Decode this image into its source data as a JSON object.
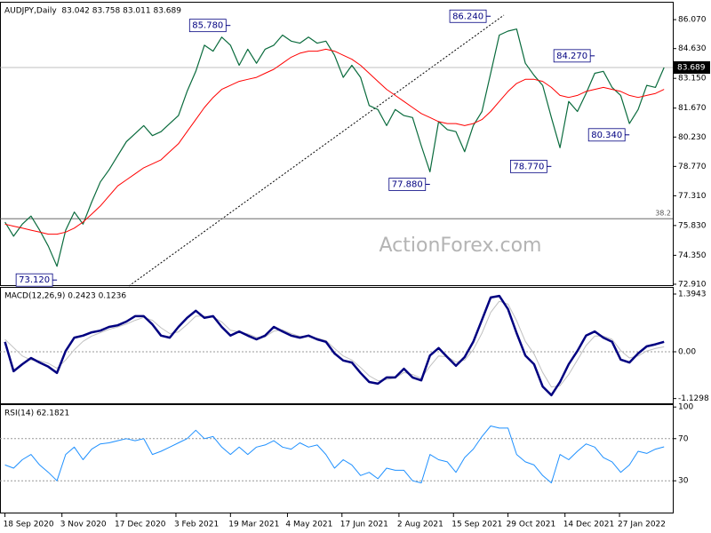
{
  "chart_data": {
    "type": "line",
    "x": [
      "2020-09-18",
      "2020-09-25",
      "2020-10-02",
      "2020-10-09",
      "2020-10-16",
      "2020-10-23",
      "2020-10-30",
      "2020-11-06",
      "2020-11-13",
      "2020-11-20",
      "2020-11-27",
      "2020-12-04",
      "2020-12-11",
      "2020-12-18",
      "2020-12-25",
      "2021-01-01",
      "2021-01-08",
      "2021-01-15",
      "2021-01-22",
      "2021-01-29",
      "2021-02-05",
      "2021-02-12",
      "2021-02-19",
      "2021-02-26",
      "2021-03-05",
      "2021-03-12",
      "2021-03-19",
      "2021-03-26",
      "2021-04-02",
      "2021-04-09",
      "2021-04-16",
      "2021-04-23",
      "2021-04-30",
      "2021-05-07",
      "2021-05-14",
      "2021-05-21",
      "2021-05-28",
      "2021-06-04",
      "2021-06-11",
      "2021-06-18",
      "2021-06-25",
      "2021-07-02",
      "2021-07-09",
      "2021-07-16",
      "2021-07-23",
      "2021-07-30",
      "2021-08-06",
      "2021-08-13",
      "2021-08-20",
      "2021-08-27",
      "2021-09-03",
      "2021-09-10",
      "2021-09-17",
      "2021-09-24",
      "2021-10-01",
      "2021-10-08",
      "2021-10-15",
      "2021-10-22",
      "2021-10-29",
      "2021-11-05",
      "2021-11-12",
      "2021-11-19",
      "2021-11-26",
      "2021-12-03",
      "2021-12-10",
      "2021-12-17",
      "2021-12-24",
      "2021-12-31",
      "2022-01-07",
      "2022-01-14",
      "2022-01-21",
      "2022-01-28",
      "2022-02-04",
      "2022-02-11",
      "2022-02-18",
      "2022-02-25",
      "2022-03-04"
    ],
    "xlim": [
      "2020-09-14",
      "2022-03-11"
    ],
    "xticks": [
      {
        "value": "2020-09-18",
        "label": "18 Sep 2020"
      },
      {
        "value": "2020-11-03",
        "label": "3 Nov 2020"
      },
      {
        "value": "2020-12-17",
        "label": "17 Dec 2020"
      },
      {
        "value": "2021-02-03",
        "label": "3 Feb 2021"
      },
      {
        "value": "2021-03-19",
        "label": "19 Mar 2021"
      },
      {
        "value": "2021-05-04",
        "label": "4 May 2021"
      },
      {
        "value": "2021-06-17",
        "label": "17 Jun 2021"
      },
      {
        "value": "2021-08-02",
        "label": "2 Aug 2021"
      },
      {
        "value": "2021-09-15",
        "label": "15 Sep 2021"
      },
      {
        "value": "2021-10-29",
        "label": "29 Oct 2021"
      },
      {
        "value": "2021-12-14",
        "label": "14 Dec 2021"
      },
      {
        "value": "2022-01-27",
        "label": "27 Jan 2022"
      }
    ],
    "watermark": "ActionForex.com",
    "panels": [
      {
        "title": "AUDJPY,Daily  83.042 83.758 83.011 83.689",
        "ylim": [
          72.82,
          86.87
        ],
        "yticks": [
          {
            "value": 86.07,
            "label": "86.070"
          },
          {
            "value": 84.63,
            "label": "84.630"
          },
          {
            "value": 83.15,
            "label": "83.150"
          },
          {
            "value": 81.67,
            "label": "81.670"
          },
          {
            "value": 80.23,
            "label": "80.230"
          },
          {
            "value": 78.77,
            "label": "78.770"
          },
          {
            "value": 77.31,
            "label": "77.310"
          },
          {
            "value": 75.83,
            "label": "75.830"
          },
          {
            "value": 74.35,
            "label": "74.350"
          },
          {
            "value": 72.91,
            "label": "72.910"
          }
        ],
        "grid": false,
        "last_price": 83.689,
        "fib_level": {
          "value": 76.17,
          "label": "38.2"
        },
        "annotations": [
          {
            "date": "2020-10-30",
            "value": 73.12,
            "label": "73.120"
          },
          {
            "date": "2021-03-19",
            "value": 85.78,
            "label": "85.780"
          },
          {
            "date": "2021-08-27",
            "value": 77.88,
            "label": "77.880"
          },
          {
            "date": "2021-10-15",
            "value": 86.24,
            "label": "86.240"
          },
          {
            "date": "2021-12-03",
            "value": 78.77,
            "label": "78.770"
          },
          {
            "date": "2022-01-07",
            "value": 84.27,
            "label": "84.270"
          },
          {
            "date": "2022-02-04",
            "value": 80.34,
            "label": "80.340"
          }
        ],
        "series": [
          {
            "color": "#0a6b3d",
            "width": 1.2,
            "values": [
              76.0,
              75.3,
              75.9,
              76.3,
              75.6,
              74.8,
              73.8,
              75.6,
              76.5,
              75.9,
              77.0,
              78.0,
              78.6,
              79.3,
              80.0,
              80.4,
              80.8,
              80.3,
              80.5,
              80.9,
              81.3,
              82.5,
              83.5,
              84.8,
              84.5,
              85.2,
              84.8,
              83.8,
              84.6,
              83.9,
              84.6,
              84.8,
              85.3,
              85.0,
              84.9,
              85.2,
              84.9,
              85.0,
              84.3,
              83.2,
              83.8,
              83.2,
              81.8,
              81.6,
              80.8,
              81.6,
              81.3,
              81.2,
              79.8,
              78.5,
              81.0,
              80.6,
              80.5,
              79.5,
              80.8,
              81.5,
              83.4,
              85.3,
              85.5,
              85.6,
              83.9,
              83.3,
              82.8,
              81.2,
              79.7,
              82.0,
              81.5,
              82.4,
              83.4,
              83.5,
              82.7,
              82.3,
              80.9,
              81.6,
              82.8,
              82.7,
              83.689
            ]
          },
          {
            "color": "#ff0000",
            "width": 1,
            "values": [
              75.9,
              75.8,
              75.7,
              75.6,
              75.5,
              75.4,
              75.4,
              75.5,
              75.7,
              76.0,
              76.4,
              76.8,
              77.3,
              77.8,
              78.1,
              78.4,
              78.7,
              78.9,
              79.1,
              79.5,
              79.9,
              80.5,
              81.1,
              81.7,
              82.2,
              82.6,
              82.8,
              83.0,
              83.1,
              83.2,
              83.4,
              83.6,
              83.9,
              84.2,
              84.4,
              84.5,
              84.5,
              84.6,
              84.5,
              84.3,
              84.1,
              83.8,
              83.4,
              83.0,
              82.6,
              82.3,
              82.0,
              81.7,
              81.4,
              81.2,
              81.0,
              80.9,
              80.9,
              80.8,
              80.9,
              81.1,
              81.5,
              82.0,
              82.5,
              82.9,
              83.1,
              83.1,
              83.0,
              82.7,
              82.3,
              82.2,
              82.3,
              82.5,
              82.6,
              82.7,
              82.6,
              82.5,
              82.3,
              82.2,
              82.3,
              82.4,
              82.6
            ]
          }
        ]
      },
      {
        "title": "MACD(12,26,9) 0.2423 0.1236",
        "ylim": [
          -1.266,
          1.523
        ],
        "yticks": [
          1.3943,
          {
            "value": 0,
            "label": "0.00"
          },
          -1.1298
        ],
        "grid": true,
        "series": [
          {
            "color": "#c0c0c0",
            "width": 1,
            "values": [
              0.3,
              0.1,
              -0.1,
              -0.2,
              -0.22,
              -0.28,
              -0.4,
              -0.2,
              0.05,
              0.25,
              0.38,
              0.46,
              0.54,
              0.6,
              0.67,
              0.76,
              0.83,
              0.76,
              0.58,
              0.44,
              0.48,
              0.66,
              0.86,
              0.86,
              0.84,
              0.72,
              0.52,
              0.48,
              0.43,
              0.35,
              0.36,
              0.5,
              0.53,
              0.44,
              0.37,
              0.37,
              0.33,
              0.27,
              0.08,
              -0.1,
              -0.2,
              -0.38,
              -0.58,
              -0.7,
              -0.67,
              -0.63,
              -0.5,
              -0.55,
              -0.64,
              -0.35,
              -0.1,
              -0.12,
              -0.25,
              -0.2,
              0.05,
              0.45,
              0.95,
              1.22,
              1.15,
              0.75,
              0.25,
              -0.05,
              -0.5,
              -0.85,
              -0.82,
              -0.55,
              -0.2,
              0.15,
              0.38,
              0.38,
              0.3,
              0.03,
              -0.15,
              -0.1,
              0.02,
              0.08,
              0.12
            ]
          },
          {
            "color": "#000080",
            "width": 2.5,
            "values": [
              0.24,
              -0.47,
              -0.3,
              -0.15,
              -0.26,
              -0.36,
              -0.51,
              0.02,
              0.34,
              0.39,
              0.47,
              0.51,
              0.6,
              0.64,
              0.73,
              0.86,
              0.86,
              0.66,
              0.39,
              0.34,
              0.6,
              0.82,
              0.99,
              0.82,
              0.86,
              0.6,
              0.39,
              0.49,
              0.39,
              0.3,
              0.39,
              0.6,
              0.49,
              0.39,
              0.34,
              0.39,
              0.3,
              0.24,
              -0.04,
              -0.21,
              -0.26,
              -0.51,
              -0.73,
              -0.77,
              -0.62,
              -0.62,
              -0.41,
              -0.62,
              -0.69,
              -0.09,
              0.09,
              -0.13,
              -0.34,
              -0.13,
              0.24,
              0.77,
              1.31,
              1.35,
              1.03,
              0.45,
              -0.09,
              -0.3,
              -0.84,
              -1.05,
              -0.73,
              -0.3,
              0.02,
              0.39,
              0.49,
              0.34,
              0.24,
              -0.19,
              -0.26,
              -0.04,
              0.13,
              0.18,
              0.24
            ]
          }
        ]
      },
      {
        "title": "RSI(14) 62.1821",
        "ylim": [
          -1,
          101
        ],
        "yticks": [
          100,
          70,
          30
        ],
        "grid": true,
        "series": [
          {
            "color": "#1e90ff",
            "width": 1,
            "values": [
              45,
              42,
              50,
              55,
              45,
              38,
              30,
              55,
              62,
              50,
              60,
              65,
              66,
              68,
              70,
              68,
              70,
              55,
              58,
              62,
              66,
              70,
              78,
              70,
              72,
              62,
              55,
              62,
              55,
              62,
              64,
              68,
              62,
              60,
              66,
              62,
              64,
              55,
              42,
              50,
              45,
              35,
              38,
              32,
              42,
              40,
              40,
              30,
              28,
              55,
              50,
              48,
              38,
              52,
              60,
              72,
              82,
              80,
              80,
              55,
              48,
              45,
              35,
              28,
              55,
              50,
              58,
              65,
              62,
              52,
              48,
              38,
              45,
              58,
              56,
              60,
              62.1821
            ]
          }
        ]
      }
    ]
  }
}
